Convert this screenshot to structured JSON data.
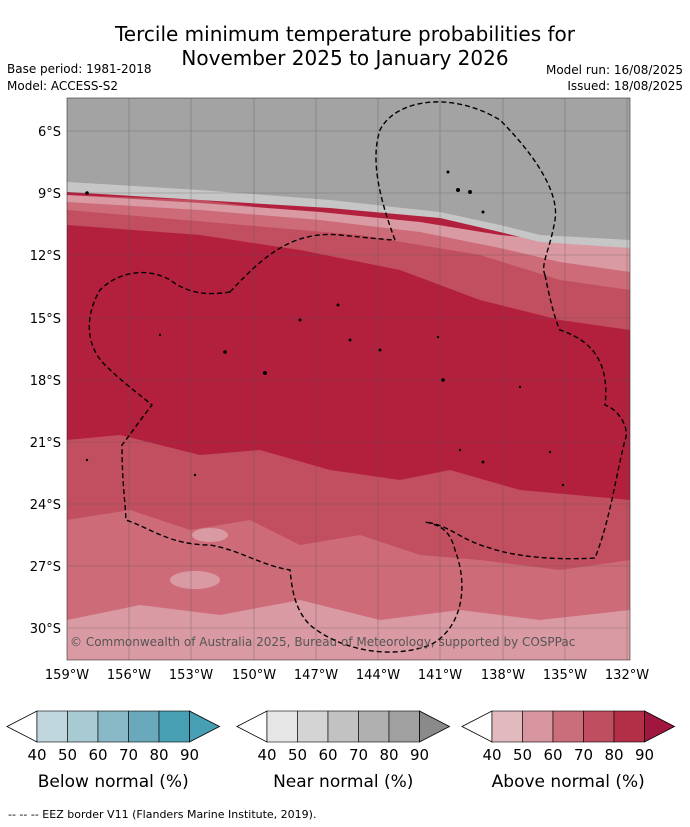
{
  "title_line1": "Tercile minimum temperature probabilities for",
  "title_line2": "November 2025 to January 2026",
  "base_period": "Base period: 1981-2018",
  "model": "Model: ACCESS-S2",
  "model_run": "Model run: 16/08/2025",
  "issued": "Issued: 18/08/2025",
  "copyright": "© Commonwealth of Australia 2025, Bureau of Meteorology, supported by COSPPac",
  "lat_labels": [
    "6°S",
    "9°S",
    "12°S",
    "15°S",
    "18°S",
    "21°S",
    "24°S",
    "27°S",
    "30°S"
  ],
  "lon_labels": [
    "159°W",
    "156°W",
    "153°W",
    "150°W",
    "147°W",
    "144°W",
    "141°W",
    "138°W",
    "135°W",
    "132°W"
  ],
  "colorbars": [
    {
      "label": "Below normal (%)",
      "ticks": [
        "40",
        "50",
        "60",
        "70",
        "80",
        "90"
      ],
      "colors": [
        "#c1d7de",
        "#a8cad3",
        "#89b8c6",
        "#6aa9bb",
        "#479fb3"
      ]
    },
    {
      "label": "Near normal (%)",
      "ticks": [
        "40",
        "50",
        "60",
        "70",
        "80",
        "90"
      ],
      "colors": [
        "#e6e6e6",
        "#d4d4d4",
        "#c2c2c2",
        "#b0b0b0",
        "#a0a0a0"
      ]
    },
    {
      "label": "Above normal (%)",
      "ticks": [
        "40",
        "50",
        "60",
        "70",
        "80",
        "90"
      ],
      "colors": [
        "#e3b9c0",
        "#d7959f",
        "#cb6e7c",
        "#bf4e60",
        "#b32f47"
      ]
    }
  ],
  "colors": {
    "near_80": "#a3a3a3",
    "near_60": "#c6c6c6",
    "above_50": "#da9aa4",
    "above_60": "#cd6b78",
    "above_70": "#c24f60",
    "above_80": "#b3203e",
    "above_90": "#9e1437"
  },
  "footer": "--  --  -- EEZ border V11 (Flanders Marine Institute, 2019)."
}
